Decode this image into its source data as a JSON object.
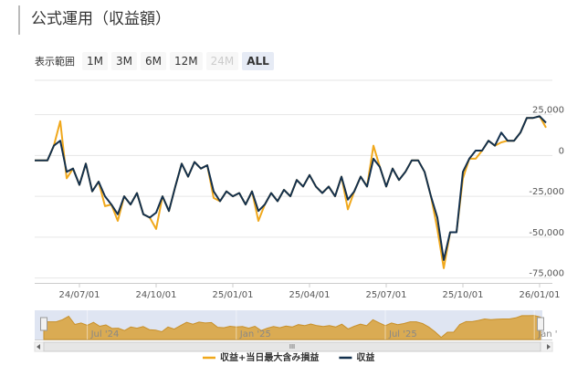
{
  "title": "公式運用（収益額）",
  "range_selector": {
    "label": "表示範囲",
    "buttons": [
      "1M",
      "3M",
      "6M",
      "12M",
      "24M",
      "ALL"
    ],
    "disabled_index": 4,
    "selected_index": 5
  },
  "chart_data": {
    "type": "line",
    "categories": [
      null,
      null,
      null,
      null,
      null,
      null,
      null,
      "24/07/01",
      null,
      null,
      null,
      null,
      null,
      null,
      null,
      null,
      null,
      null,
      null,
      "24/10/01",
      null,
      null,
      null,
      null,
      null,
      null,
      null,
      null,
      null,
      null,
      null,
      "25/01/01",
      null,
      null,
      null,
      null,
      null,
      null,
      null,
      null,
      null,
      null,
      null,
      "25/04/01",
      null,
      null,
      null,
      null,
      null,
      null,
      null,
      null,
      null,
      null,
      null,
      "25/07/01",
      null,
      null,
      null,
      null,
      null,
      null,
      null,
      null,
      null,
      null,
      null,
      "25/10/01",
      null,
      null,
      null,
      null,
      null,
      null,
      null,
      null,
      null,
      null,
      null,
      "26/01/01",
      null
    ],
    "series": [
      {
        "name": "収益+当日最大含み損益",
        "color": "#f0a81c",
        "values": [
          -3000,
          -3000,
          -3000,
          6000,
          21000,
          -14000,
          -8000,
          -18000,
          -5000,
          -22000,
          -16000,
          -31000,
          -30000,
          -40000,
          -25000,
          -30000,
          -23000,
          -36000,
          -38000,
          -45000,
          -25000,
          -34000,
          -19000,
          -5000,
          -13000,
          -4000,
          -8000,
          -6000,
          -26000,
          -28000,
          -22000,
          -25000,
          -23000,
          -30000,
          -22000,
          -40000,
          -30000,
          -23000,
          -28000,
          -21000,
          -25000,
          -15000,
          -19000,
          -12000,
          -19000,
          -23000,
          -19000,
          -25000,
          -13000,
          -33000,
          -22000,
          -13000,
          -19000,
          6000,
          -7000,
          -19000,
          -8000,
          -15000,
          -10000,
          -3000,
          -3000,
          -10000,
          -25000,
          -45000,
          -69000,
          -47000,
          -47000,
          -14000,
          -2000,
          -2000,
          3000,
          9000,
          6000,
          8000,
          9000,
          9000,
          14000,
          23000,
          23000,
          24000,
          17000
        ]
      },
      {
        "name": "収益",
        "color": "#13304d",
        "values": [
          -3000,
          -3000,
          -3000,
          6000,
          9000,
          -10000,
          -8000,
          -18000,
          -5000,
          -22000,
          -16000,
          -25000,
          -30000,
          -36000,
          -25000,
          -30000,
          -23000,
          -36000,
          -38000,
          -35000,
          -25000,
          -34000,
          -19000,
          -5000,
          -13000,
          -4000,
          -8000,
          -6000,
          -22000,
          -28000,
          -22000,
          -25000,
          -23000,
          -30000,
          -22000,
          -34000,
          -30000,
          -23000,
          -28000,
          -21000,
          -25000,
          -15000,
          -19000,
          -12000,
          -19000,
          -23000,
          -19000,
          -25000,
          -13000,
          -27000,
          -22000,
          -13000,
          -19000,
          -2000,
          -7000,
          -19000,
          -8000,
          -15000,
          -10000,
          -3000,
          -3000,
          -10000,
          -25000,
          -38000,
          -64000,
          -47000,
          -47000,
          -10000,
          -2000,
          3000,
          3000,
          9000,
          6000,
          14000,
          9000,
          9000,
          14000,
          23000,
          23000,
          24000,
          20000
        ]
      }
    ],
    "ylim": [
      -78000,
      46000
    ],
    "yticks": [
      {
        "value": -75000,
        "label": "-75,000"
      },
      {
        "value": -50000,
        "label": "-50,000"
      },
      {
        "value": -25000,
        "label": "-25,000"
      },
      0,
      {
        "value": 25000,
        "label": "25,000"
      }
    ],
    "grid": true
  },
  "navigator": {
    "labels": [
      "Jul '24",
      "Jan '25",
      "Jul '25",
      "Jan '"
    ]
  }
}
